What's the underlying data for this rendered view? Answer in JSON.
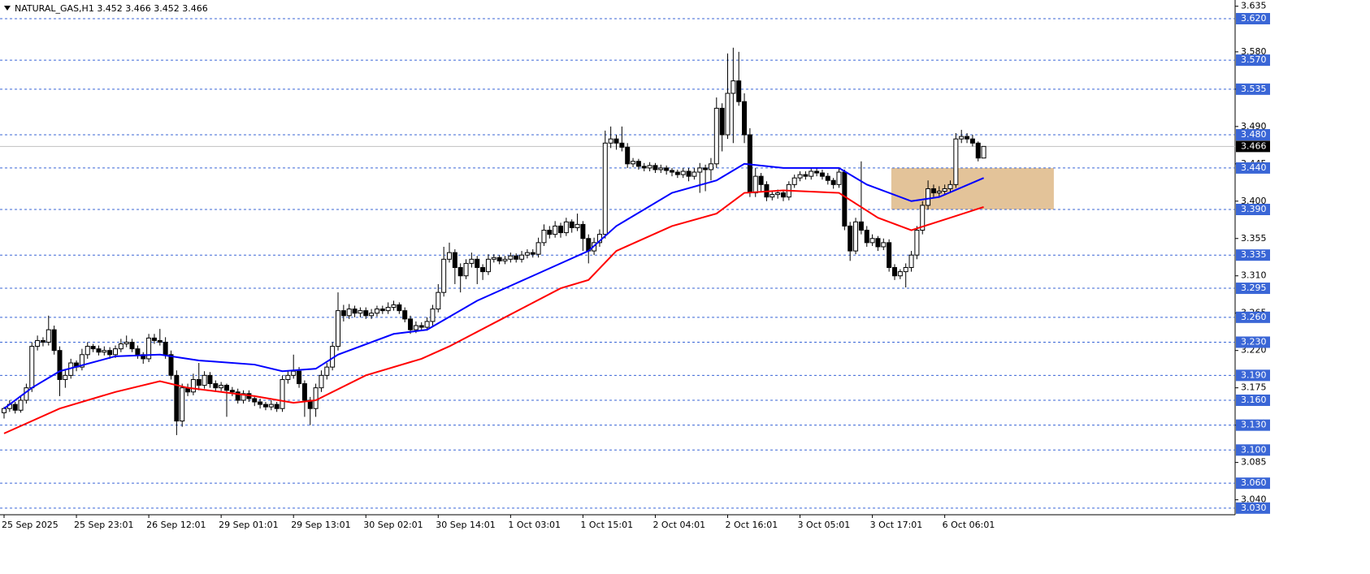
{
  "chart_data": {
    "type": "candlestick",
    "title": "NATURAL_GAS,H1  3.452 3.466 3.452 3.466",
    "categories": [
      "25 Sep 2025",
      null,
      null,
      null,
      null,
      null,
      null,
      null,
      null,
      null,
      null,
      null,
      null,
      "25 Sep 23:01",
      null,
      null,
      null,
      null,
      null,
      null,
      null,
      null,
      null,
      null,
      null,
      null,
      "26 Sep 12:01",
      null,
      null,
      null,
      null,
      null,
      null,
      null,
      null,
      null,
      null,
      null,
      null,
      "29 Sep 01:01",
      null,
      null,
      null,
      null,
      null,
      null,
      null,
      null,
      null,
      null,
      null,
      null,
      "29 Sep 13:01",
      null,
      null,
      null,
      null,
      null,
      null,
      null,
      null,
      null,
      null,
      null,
      null,
      "30 Sep 02:01",
      null,
      null,
      null,
      null,
      null,
      null,
      null,
      null,
      null,
      null,
      null,
      null,
      "30 Sep 14:01",
      null,
      null,
      null,
      null,
      null,
      null,
      null,
      null,
      null,
      null,
      null,
      null,
      "1 Oct 03:01",
      null,
      null,
      null,
      null,
      null,
      null,
      null,
      null,
      null,
      null,
      null,
      null,
      "1 Oct 15:01",
      null,
      null,
      null,
      null,
      null,
      null,
      null,
      null,
      null,
      null,
      null,
      null,
      "2 Oct 04:01",
      null,
      null,
      null,
      null,
      null,
      null,
      null,
      null,
      null,
      null,
      null,
      null,
      "2 Oct 16:01",
      null,
      null,
      null,
      null,
      null,
      null,
      null,
      null,
      null,
      null,
      null,
      null,
      "3 Oct 05:01",
      null,
      null,
      null,
      null,
      null,
      null,
      null,
      null,
      null,
      null,
      null,
      null,
      "3 Oct 17:01",
      null,
      null,
      null,
      null,
      null,
      null,
      null,
      null,
      null,
      null,
      null,
      null,
      "6 Oct 06:01",
      null,
      null,
      null,
      null,
      null,
      null,
      null
    ],
    "candles": [
      [
        3.145,
        3.152,
        3.138,
        3.15
      ],
      [
        3.15,
        3.16,
        3.146,
        3.155
      ],
      [
        3.155,
        3.158,
        3.144,
        3.148
      ],
      [
        3.148,
        3.165,
        3.145,
        3.16
      ],
      [
        3.16,
        3.18,
        3.156,
        3.175
      ],
      [
        3.175,
        3.23,
        3.17,
        3.225
      ],
      [
        3.225,
        3.238,
        3.22,
        3.232
      ],
      [
        3.232,
        3.236,
        3.225,
        3.23
      ],
      [
        3.23,
        3.262,
        3.226,
        3.245
      ],
      [
        3.245,
        3.25,
        3.215,
        3.22
      ],
      [
        3.22,
        3.225,
        3.165,
        3.185
      ],
      [
        3.185,
        3.196,
        3.175,
        3.19
      ],
      [
        3.19,
        3.21,
        3.186,
        3.205
      ],
      [
        3.205,
        3.208,
        3.195,
        3.2
      ],
      [
        3.2,
        3.222,
        3.196,
        3.215
      ],
      [
        3.215,
        3.23,
        3.21,
        3.225
      ],
      [
        3.225,
        3.228,
        3.218,
        3.222
      ],
      [
        3.222,
        3.226,
        3.214,
        3.218
      ],
      [
        3.218,
        3.225,
        3.214,
        3.22
      ],
      [
        3.22,
        3.224,
        3.21,
        3.215
      ],
      [
        3.215,
        3.226,
        3.211,
        3.222
      ],
      [
        3.222,
        3.234,
        3.218,
        3.228
      ],
      [
        3.228,
        3.238,
        3.224,
        3.23
      ],
      [
        3.23,
        3.234,
        3.218,
        3.222
      ],
      [
        3.222,
        3.226,
        3.21,
        3.215
      ],
      [
        3.215,
        3.218,
        3.204,
        3.21
      ],
      [
        3.21,
        3.24,
        3.206,
        3.235
      ],
      [
        3.235,
        3.24,
        3.228,
        3.232
      ],
      [
        3.232,
        3.246,
        3.226,
        3.23
      ],
      [
        3.23,
        3.236,
        3.21,
        3.215
      ],
      [
        3.215,
        3.22,
        3.185,
        3.19
      ],
      [
        3.19,
        3.196,
        3.118,
        3.135
      ],
      [
        3.135,
        3.18,
        3.128,
        3.175
      ],
      [
        3.175,
        3.18,
        3.165,
        3.17
      ],
      [
        3.17,
        3.192,
        3.166,
        3.185
      ],
      [
        3.185,
        3.205,
        3.172,
        3.178
      ],
      [
        3.178,
        3.195,
        3.174,
        3.19
      ],
      [
        3.19,
        3.194,
        3.175,
        3.18
      ],
      [
        3.18,
        3.184,
        3.17,
        3.175
      ],
      [
        3.175,
        3.182,
        3.171,
        3.178
      ],
      [
        3.178,
        3.18,
        3.14,
        3.172
      ],
      [
        3.172,
        3.176,
        3.165,
        3.17
      ],
      [
        3.17,
        3.174,
        3.156,
        3.16
      ],
      [
        3.16,
        3.172,
        3.156,
        3.168
      ],
      [
        3.168,
        3.172,
        3.158,
        3.162
      ],
      [
        3.162,
        3.166,
        3.153,
        3.158
      ],
      [
        3.158,
        3.162,
        3.15,
        3.155
      ],
      [
        3.155,
        3.158,
        3.148,
        3.152
      ],
      [
        3.152,
        3.16,
        3.148,
        3.155
      ],
      [
        3.155,
        3.158,
        3.146,
        3.15
      ],
      [
        3.15,
        3.19,
        3.146,
        3.185
      ],
      [
        3.185,
        3.196,
        3.18,
        3.19
      ],
      [
        3.19,
        3.215,
        3.186,
        3.195
      ],
      [
        3.195,
        3.2,
        3.175,
        3.18
      ],
      [
        3.18,
        3.184,
        3.14,
        3.16
      ],
      [
        3.16,
        3.164,
        3.13,
        3.15
      ],
      [
        3.15,
        3.18,
        3.14,
        3.175
      ],
      [
        3.175,
        3.196,
        3.17,
        3.19
      ],
      [
        3.19,
        3.205,
        3.185,
        3.2
      ],
      [
        3.2,
        3.23,
        3.196,
        3.225
      ],
      [
        3.225,
        3.29,
        3.22,
        3.268
      ],
      [
        3.268,
        3.275,
        3.255,
        3.262
      ],
      [
        3.262,
        3.276,
        3.258,
        3.27
      ],
      [
        3.27,
        3.274,
        3.26,
        3.265
      ],
      [
        3.265,
        3.272,
        3.26,
        3.268
      ],
      [
        3.268,
        3.272,
        3.258,
        3.262
      ],
      [
        3.262,
        3.27,
        3.258,
        3.265
      ],
      [
        3.265,
        3.274,
        3.261,
        3.27
      ],
      [
        3.27,
        3.274,
        3.264,
        3.268
      ],
      [
        3.268,
        3.278,
        3.264,
        3.272
      ],
      [
        3.272,
        3.28,
        3.268,
        3.275
      ],
      [
        3.275,
        3.278,
        3.264,
        3.268
      ],
      [
        3.268,
        3.272,
        3.254,
        3.258
      ],
      [
        3.258,
        3.262,
        3.24,
        3.245
      ],
      [
        3.245,
        3.255,
        3.241,
        3.25
      ],
      [
        3.25,
        3.254,
        3.244,
        3.248
      ],
      [
        3.248,
        3.26,
        3.244,
        3.255
      ],
      [
        3.255,
        3.275,
        3.25,
        3.27
      ],
      [
        3.27,
        3.3,
        3.266,
        3.29
      ],
      [
        3.29,
        3.345,
        3.285,
        3.33
      ],
      [
        3.33,
        3.35,
        3.326,
        3.338
      ],
      [
        3.338,
        3.342,
        3.3,
        3.32
      ],
      [
        3.32,
        3.325,
        3.29,
        3.31
      ],
      [
        3.31,
        3.33,
        3.306,
        3.325
      ],
      [
        3.325,
        3.338,
        3.32,
        3.33
      ],
      [
        3.33,
        3.334,
        3.3,
        3.32
      ],
      [
        3.32,
        3.324,
        3.305,
        3.315
      ],
      [
        3.315,
        3.336,
        3.311,
        3.33
      ],
      [
        3.33,
        3.336,
        3.326,
        3.332
      ],
      [
        3.332,
        3.335,
        3.324,
        3.328
      ],
      [
        3.328,
        3.334,
        3.324,
        3.33
      ],
      [
        3.33,
        3.338,
        3.326,
        3.334
      ],
      [
        3.334,
        3.337,
        3.326,
        3.33
      ],
      [
        3.33,
        3.34,
        3.326,
        3.335
      ],
      [
        3.335,
        3.342,
        3.331,
        3.338
      ],
      [
        3.338,
        3.342,
        3.332,
        3.336
      ],
      [
        3.336,
        3.356,
        3.332,
        3.35
      ],
      [
        3.35,
        3.372,
        3.346,
        3.365
      ],
      [
        3.365,
        3.37,
        3.355,
        3.36
      ],
      [
        3.36,
        3.376,
        3.356,
        3.37
      ],
      [
        3.37,
        3.374,
        3.356,
        3.362
      ],
      [
        3.362,
        3.38,
        3.358,
        3.375
      ],
      [
        3.375,
        3.378,
        3.362,
        3.368
      ],
      [
        3.368,
        3.385,
        3.364,
        3.372
      ],
      [
        3.372,
        3.376,
        3.34,
        3.355
      ],
      [
        3.355,
        3.36,
        3.325,
        3.34
      ],
      [
        3.34,
        3.356,
        3.335,
        3.35
      ],
      [
        3.35,
        3.366,
        3.345,
        3.36
      ],
      [
        3.36,
        3.485,
        3.355,
        3.47
      ],
      [
        3.47,
        3.49,
        3.464,
        3.475
      ],
      [
        3.475,
        3.48,
        3.462,
        3.47
      ],
      [
        3.47,
        3.49,
        3.46,
        3.465
      ],
      [
        3.465,
        3.47,
        3.44,
        3.445
      ],
      [
        3.445,
        3.452,
        3.441,
        3.448
      ],
      [
        3.448,
        3.451,
        3.438,
        3.442
      ],
      [
        3.442,
        3.446,
        3.436,
        3.44
      ],
      [
        3.44,
        3.447,
        3.436,
        3.443
      ],
      [
        3.443,
        3.446,
        3.434,
        3.438
      ],
      [
        3.438,
        3.444,
        3.434,
        3.44
      ],
      [
        3.44,
        3.443,
        3.432,
        3.437
      ],
      [
        3.437,
        3.44,
        3.43,
        3.435
      ],
      [
        3.435,
        3.438,
        3.428,
        3.432
      ],
      [
        3.432,
        3.44,
        3.428,
        3.436
      ],
      [
        3.436,
        3.44,
        3.424,
        3.43
      ],
      [
        3.43,
        3.44,
        3.426,
        3.435
      ],
      [
        3.435,
        3.446,
        3.41,
        3.44
      ],
      [
        3.44,
        3.444,
        3.412,
        3.438
      ],
      [
        3.438,
        3.452,
        3.425,
        3.445
      ],
      [
        3.445,
        3.525,
        3.44,
        3.512
      ],
      [
        3.512,
        3.518,
        3.46,
        3.48
      ],
      [
        3.48,
        3.578,
        3.475,
        3.53
      ],
      [
        3.53,
        3.585,
        3.47,
        3.545
      ],
      [
        3.545,
        3.58,
        3.515,
        3.52
      ],
      [
        3.52,
        3.53,
        3.47,
        3.48
      ],
      [
        3.48,
        3.488,
        3.405,
        3.41
      ],
      [
        3.41,
        3.44,
        3.405,
        3.43
      ],
      [
        3.43,
        3.434,
        3.412,
        3.42
      ],
      [
        3.42,
        3.424,
        3.4,
        3.405
      ],
      [
        3.405,
        3.412,
        3.401,
        3.408
      ],
      [
        3.408,
        3.414,
        3.403,
        3.41
      ],
      [
        3.41,
        3.413,
        3.4,
        3.405
      ],
      [
        3.405,
        3.424,
        3.401,
        3.42
      ],
      [
        3.42,
        3.432,
        3.416,
        3.428
      ],
      [
        3.428,
        3.436,
        3.424,
        3.432
      ],
      [
        3.432,
        3.436,
        3.426,
        3.43
      ],
      [
        3.43,
        3.44,
        3.426,
        3.436
      ],
      [
        3.436,
        3.44,
        3.43,
        3.434
      ],
      [
        3.434,
        3.438,
        3.426,
        3.43
      ],
      [
        3.43,
        3.434,
        3.42,
        3.425
      ],
      [
        3.425,
        3.428,
        3.415,
        3.42
      ],
      [
        3.42,
        3.44,
        3.416,
        3.435
      ],
      [
        3.435,
        3.438,
        3.365,
        3.37
      ],
      [
        3.37,
        3.375,
        3.328,
        3.34
      ],
      [
        3.34,
        3.38,
        3.336,
        3.375
      ],
      [
        3.375,
        3.448,
        3.36,
        3.365
      ],
      [
        3.365,
        3.37,
        3.345,
        3.35
      ],
      [
        3.35,
        3.36,
        3.346,
        3.355
      ],
      [
        3.355,
        3.358,
        3.34,
        3.345
      ],
      [
        3.345,
        3.355,
        3.341,
        3.35
      ],
      [
        3.35,
        3.354,
        3.315,
        3.32
      ],
      [
        3.32,
        3.324,
        3.305,
        3.31
      ],
      [
        3.31,
        3.318,
        3.306,
        3.315
      ],
      [
        3.315,
        3.325,
        3.296,
        3.32
      ],
      [
        3.32,
        3.34,
        3.315,
        3.335
      ],
      [
        3.335,
        3.37,
        3.33,
        3.365
      ],
      [
        3.365,
        3.4,
        3.36,
        3.395
      ],
      [
        3.395,
        3.425,
        3.39,
        3.415
      ],
      [
        3.415,
        3.42,
        3.405,
        3.41
      ],
      [
        3.41,
        3.418,
        3.406,
        3.412
      ],
      [
        3.412,
        3.42,
        3.408,
        3.415
      ],
      [
        3.415,
        3.425,
        3.41,
        3.42
      ],
      [
        3.42,
        3.482,
        3.416,
        3.475
      ],
      [
        3.475,
        3.486,
        3.47,
        3.478
      ],
      [
        3.478,
        3.482,
        3.47,
        3.475
      ],
      [
        3.475,
        3.48,
        3.466,
        3.47
      ],
      [
        3.47,
        3.472,
        3.448,
        3.452
      ],
      [
        3.452,
        3.466,
        3.452,
        3.466
      ]
    ],
    "ma": [
      {
        "color": "#0000ff",
        "x": [
          0,
          5,
          10,
          20,
          28,
          35,
          45,
          50,
          56,
          60,
          70,
          76,
          85,
          95,
          105,
          110,
          120,
          128,
          133,
          140,
          150,
          155,
          163,
          168,
          176
        ],
        "values": [
          3.15,
          3.175,
          3.195,
          3.213,
          3.215,
          3.208,
          3.203,
          3.195,
          3.198,
          3.215,
          3.24,
          3.245,
          3.28,
          3.31,
          3.34,
          3.37,
          3.41,
          3.425,
          3.445,
          3.44,
          3.44,
          3.42,
          3.4,
          3.405,
          3.428
        ]
      },
      {
        "color": "#ff0000",
        "x": [
          0,
          10,
          20,
          28,
          33,
          45,
          52,
          56,
          65,
          75,
          80,
          90,
          100,
          105,
          110,
          120,
          128,
          133,
          140,
          150,
          157,
          163,
          170,
          176
        ],
        "values": [
          3.12,
          3.15,
          3.17,
          3.183,
          3.175,
          3.165,
          3.157,
          3.16,
          3.19,
          3.21,
          3.225,
          3.26,
          3.295,
          3.305,
          3.34,
          3.37,
          3.385,
          3.41,
          3.413,
          3.41,
          3.38,
          3.365,
          3.38,
          3.393
        ]
      }
    ],
    "zone": {
      "x": [
        159.4,
        188.6
      ],
      "y": [
        3.39,
        3.44
      ],
      "color": "#deb887"
    },
    "ylim": [
      3.022,
      3.6425
    ],
    "yticks": [
      3.635,
      {
        "value": 3.58,
        "label": "3.580"
      },
      3.535,
      {
        "value": 3.49,
        "label": "3.490"
      },
      3.445,
      {
        "value": 3.4,
        "label": "3.400"
      },
      3.355,
      {
        "value": 3.31,
        "label": "3.310"
      },
      3.265,
      {
        "value": 3.22,
        "label": "3.220"
      },
      3.175,
      {
        "value": 3.13,
        "label": "3.130"
      },
      3.085,
      {
        "value": 3.04,
        "label": "3.040"
      }
    ],
    "levels": [
      {
        "value": 3.62,
        "label": "3.620"
      },
      {
        "value": 3.57,
        "label": "3.570"
      },
      3.535,
      {
        "value": 3.48,
        "label": "3.480"
      },
      {
        "value": 3.44,
        "label": "3.440"
      },
      {
        "value": 3.39,
        "label": "3.390"
      },
      3.335,
      3.295,
      {
        "value": 3.26,
        "label": "3.260"
      },
      {
        "value": 3.23,
        "label": "3.230"
      },
      {
        "value": 3.19,
        "label": "3.190"
      },
      {
        "value": 3.16,
        "label": "3.160"
      },
      {
        "value": 3.13,
        "label": "3.130"
      },
      {
        "value": 3.1,
        "label": "3.100"
      },
      {
        "value": 3.06,
        "label": "3.060"
      },
      {
        "value": 3.03,
        "label": "3.030"
      }
    ],
    "level_color": "#3a66d6",
    "current_price": 3.466,
    "grid": false
  }
}
